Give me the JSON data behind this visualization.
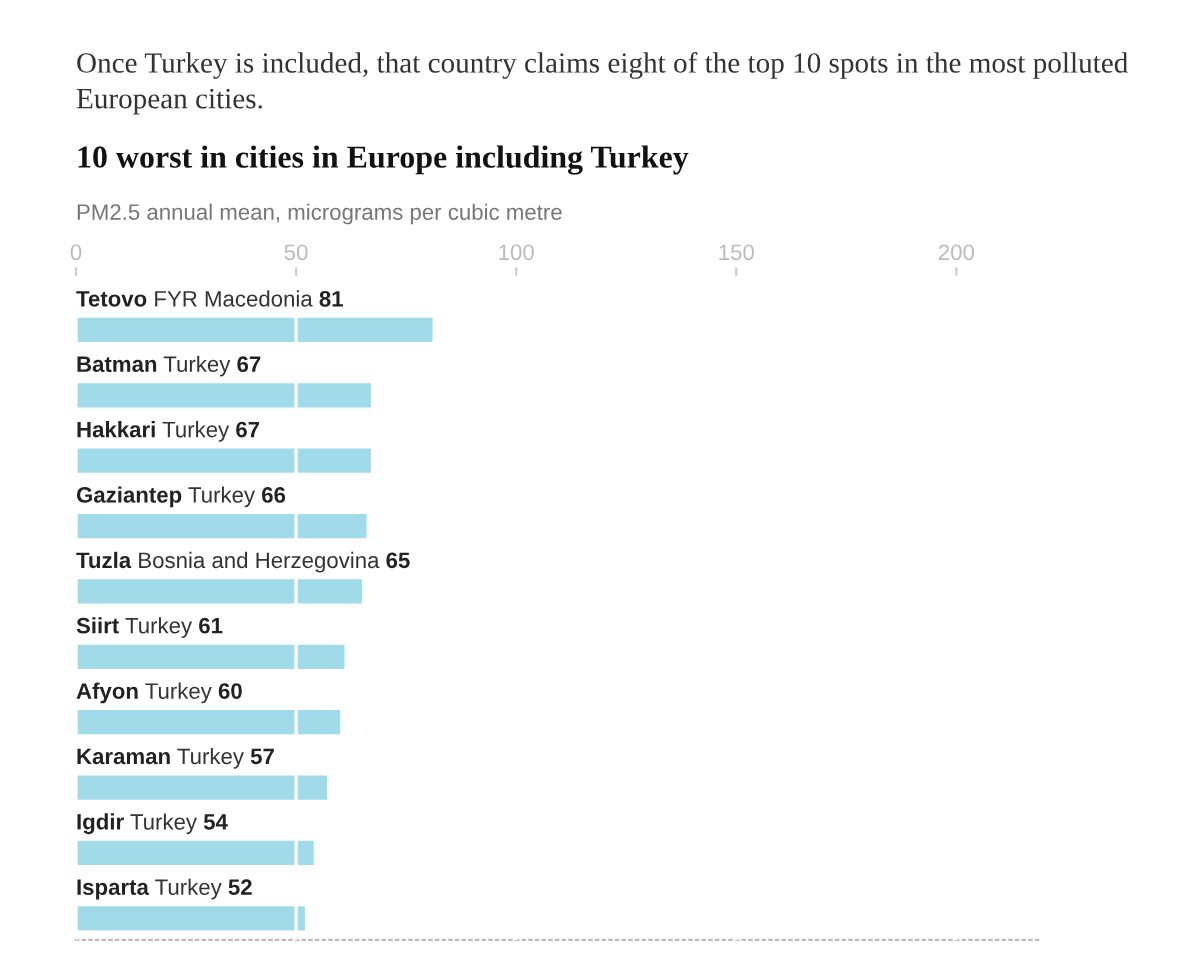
{
  "chart_data": {
    "type": "bar",
    "orientation": "horizontal",
    "title": "10 worst in cities in Europe including Turkey",
    "subtitle": "PM2.5 annual mean, micrograms per cubic metre",
    "annotations": [
      "Once Turkey is included, that country claims eight of the top 10 spots in the most polluted European cities."
    ],
    "categories": [
      "Tetovo FYR Macedonia",
      "Batman Turkey",
      "Hakkari Turkey",
      "Gaziantep Turkey",
      "Tuzla Bosnia and Herzegovina",
      "Siirt Turkey",
      "Afyon Turkey",
      "Karaman Turkey",
      "Igdir Turkey",
      "Isparta Turkey"
    ],
    "values": [
      81,
      67,
      67,
      66,
      65,
      61,
      60,
      57,
      54,
      52
    ],
    "color": "#a1dbea",
    "xlim": [
      0,
      219
    ],
    "xticks": [
      0,
      50,
      100,
      150,
      200
    ],
    "grid": "x",
    "data_labels": true
  }
}
